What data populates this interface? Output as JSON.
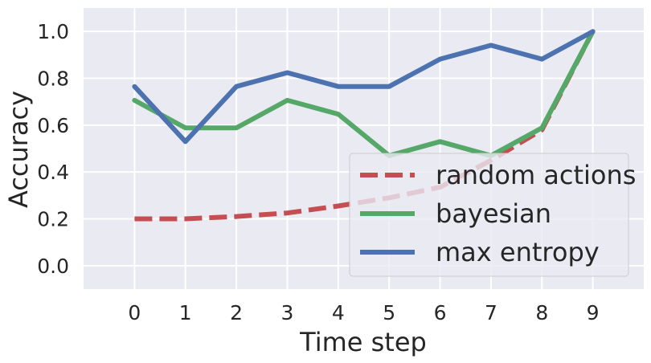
{
  "chart_data": {
    "type": "line",
    "title": "",
    "xlabel": "Time step",
    "ylabel": "Accuracy",
    "x": [
      0,
      1,
      2,
      3,
      4,
      5,
      6,
      7,
      8,
      9
    ],
    "xticks": [
      "0",
      "1",
      "2",
      "3",
      "4",
      "5",
      "6",
      "7",
      "8",
      "9"
    ],
    "xlim": [
      -1,
      10
    ],
    "yticks": [
      "0.0",
      "0.2",
      "0.4",
      "0.6",
      "0.8",
      "1.0"
    ],
    "ylim": [
      -0.1,
      1.1
    ],
    "grid": true,
    "legend_position": "lower-right",
    "series": [
      {
        "name": "random actions",
        "color": "#c44e52",
        "style": "dashed",
        "values": [
          0.2,
          0.2,
          0.21,
          0.225,
          0.255,
          0.29,
          0.335,
          0.45,
          0.58,
          1.0
        ]
      },
      {
        "name": "bayesian",
        "color": "#55a868",
        "style": "solid",
        "values": [
          0.706,
          0.588,
          0.588,
          0.706,
          0.647,
          0.47,
          0.53,
          0.47,
          0.588,
          1.0
        ]
      },
      {
        "name": "max entropy",
        "color": "#4c72b0",
        "style": "solid",
        "values": [
          0.765,
          0.53,
          0.765,
          0.824,
          0.765,
          0.765,
          0.882,
          0.941,
          0.882,
          1.0
        ]
      }
    ]
  }
}
